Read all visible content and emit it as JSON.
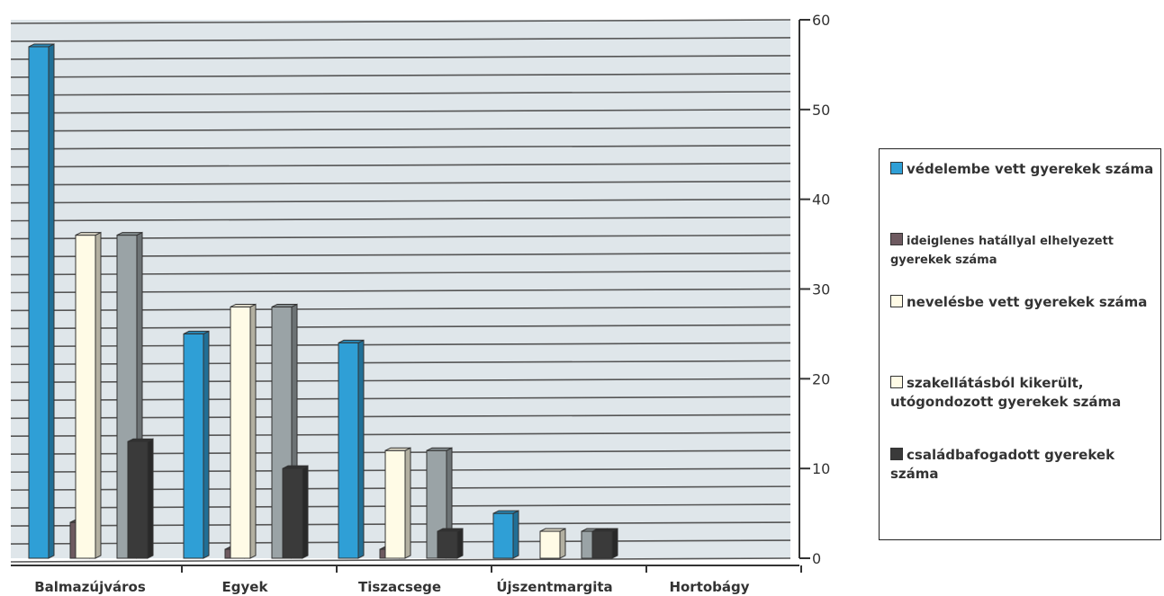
{
  "chart_data": {
    "type": "bar",
    "categories": [
      "Balmazújváros",
      "Egyek",
      "Tiszacsege",
      "Újszentmargita",
      "Hortobágy"
    ],
    "series": [
      {
        "name": "védelembe vett gyerekek száma",
        "color": "#2f9fd6",
        "values": [
          57,
          25,
          24,
          5,
          0
        ]
      },
      {
        "name": "ideiglenes hatállyal elhelyezett gyerekek száma",
        "color": "#6e5a60",
        "values": [
          4,
          1,
          1,
          0,
          0
        ]
      },
      {
        "name": "nevelésbe vett gyerekek száma",
        "color": "#fffbe6",
        "values": [
          36,
          28,
          12,
          3,
          0
        ]
      },
      {
        "name": "szakellátásból kikerült, utógondozott gyerekek száma",
        "color": "#fffbe6",
        "values": [
          36,
          28,
          12,
          3,
          0
        ]
      },
      {
        "name": "családbafogadott gyerekek száma",
        "color": "#3a3a3a",
        "values": [
          13,
          10,
          3,
          3,
          0
        ]
      }
    ],
    "yticks": [
      "0",
      "10",
      "20",
      "30",
      "40",
      "50",
      "60"
    ],
    "ylim": [
      0,
      60
    ],
    "grid": true,
    "legend_position": "right"
  }
}
